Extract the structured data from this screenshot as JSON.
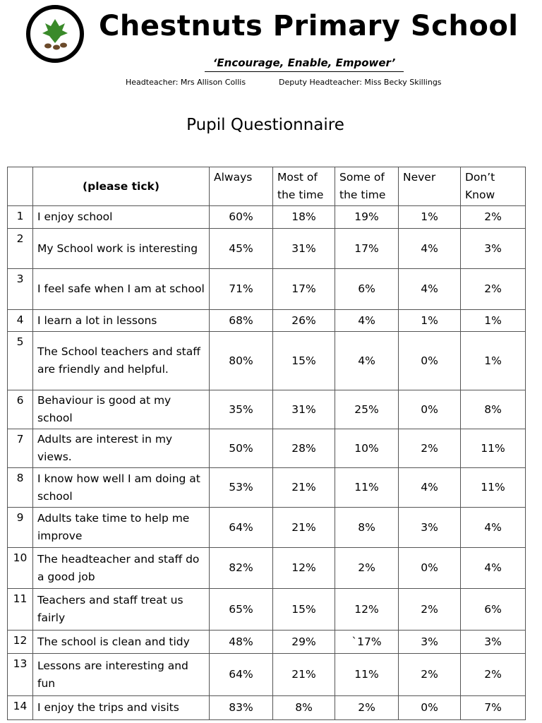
{
  "header": {
    "title": "Chestnuts Primary School",
    "motto": "‘Encourage, Enable, Empower’",
    "headteacher": "Headteacher: Mrs Allison Collis",
    "deputy": "Deputy Headteacher: Miss Becky Skillings"
  },
  "heading": "Pupil Questionnaire",
  "table": {
    "columns": [
      "(please tick)",
      "Always",
      "Most of the time",
      "Some of the time",
      "Never",
      "Don’t Know"
    ],
    "rows": [
      {
        "number": "1",
        "question": "I enjoy school",
        "values": [
          "60%",
          "18%",
          "19%",
          "1%",
          "2%"
        ]
      },
      {
        "number": "2",
        "question": "My School work is interesting",
        "values": [
          "45%",
          "31%",
          "17%",
          "4%",
          "3%"
        ]
      },
      {
        "number": "3",
        "question": "I feel safe when I am at school",
        "values": [
          "71%",
          "17%",
          "6%",
          "4%",
          "2%"
        ]
      },
      {
        "number": "4",
        "question": "I learn a lot in lessons",
        "values": [
          "68%",
          "26%",
          "4%",
          "1%",
          "1%"
        ]
      },
      {
        "number": "5",
        "question": "The School teachers and staff are friendly and helpful.",
        "values": [
          "80%",
          "15%",
          "4%",
          "0%",
          "1%"
        ]
      },
      {
        "number": "6",
        "question": "Behaviour is good at my school",
        "values": [
          "35%",
          "31%",
          "25%",
          "0%",
          "8%"
        ]
      },
      {
        "number": "7",
        "question": "Adults are interest in my views.",
        "values": [
          "50%",
          "28%",
          "10%",
          "2%",
          "11%"
        ]
      },
      {
        "number": "8",
        "question": "I know how well I am doing at school",
        "values": [
          "53%",
          "21%",
          "11%",
          "4%",
          "11%"
        ]
      },
      {
        "number": "9",
        "question": "Adults take time to help me improve",
        "values": [
          "64%",
          "21%",
          "8%",
          "3%",
          "4%"
        ]
      },
      {
        "number": "10",
        "question": "The headteacher and staff do a good job",
        "values": [
          "82%",
          "12%",
          "2%",
          "0%",
          "4%"
        ]
      },
      {
        "number": "11",
        "question": "Teachers and staff treat us fairly",
        "values": [
          "65%",
          "15%",
          "12%",
          "2%",
          "6%"
        ]
      },
      {
        "number": "12",
        "question": "The school is clean and tidy",
        "values": [
          "48%",
          "29%",
          "`17%",
          "3%",
          "3%"
        ]
      },
      {
        "number": "13",
        "question": "Lessons are interesting and fun",
        "values": [
          "64%",
          "21%",
          "11%",
          "2%",
          "2%"
        ]
      },
      {
        "number": "14",
        "question": "I enjoy the trips and visits",
        "values": [
          "83%",
          "8%",
          "2%",
          "0%",
          "7%"
        ]
      }
    ]
  }
}
